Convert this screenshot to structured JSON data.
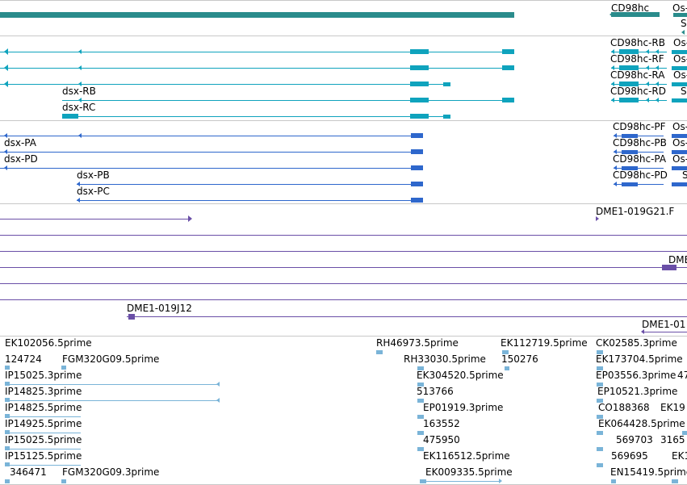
{
  "colors": {
    "cdna": "#2a8c8c",
    "transcript_teal": "#0fa3bd",
    "transcript_blue": "#2e67cc",
    "clone": "#6a4fa7",
    "est": "#7ab4d8",
    "separator": "#c8c8c8"
  },
  "section_cdna": {
    "labels": [
      "CD98hc",
      "Os-",
      "S"
    ]
  },
  "section_teal": {
    "labels": [
      "dsx-RB",
      "dsx-RC",
      "CD98hc-RB",
      "CD98hc-RF",
      "CD98hc-RA",
      "CD98hc-RD",
      "Os-",
      "Os-",
      "Os-",
      "S"
    ]
  },
  "section_blue": {
    "labels": [
      "dsx-PA",
      "dsx-PD",
      "dsx-PB",
      "dsx-PC",
      "CD98hc-PF",
      "CD98hc-PB",
      "CD98hc-PA",
      "CD98hc-PD",
      "Os-",
      "Os-",
      "Os-",
      "S"
    ]
  },
  "section_clones": {
    "labels": [
      "DME1-019G21.F",
      "DME",
      "DME1-019J12",
      "DME1-01"
    ]
  },
  "section_est": {
    "labels": [
      "EK102056.5prime",
      "124724",
      "FGM320G09.5prime",
      "IP15025.3prime",
      "IP14825.3prime",
      "IP14825.5prime",
      "IP14925.5prime",
      "IP15025.5prime",
      "IP15125.5prime",
      "346471",
      "FGM320G09.3prime",
      "RH46973.5prime",
      "EK112719.5prime",
      "RH33030.5prime",
      "150276",
      "EK304520.5prime",
      "513766",
      "EP01919.3prime",
      "163552",
      "475950",
      "EK116512.5prime",
      "EK009335.5prime",
      "CK02585.3prime",
      "EK173704.5prime",
      "EP03556.3prime",
      "47",
      "EP10521.3prime",
      "CO188368",
      "EK19",
      "EK064428.5prime",
      "569703",
      "3165",
      "569695",
      "EK1",
      "EN15419.5prime"
    ]
  }
}
